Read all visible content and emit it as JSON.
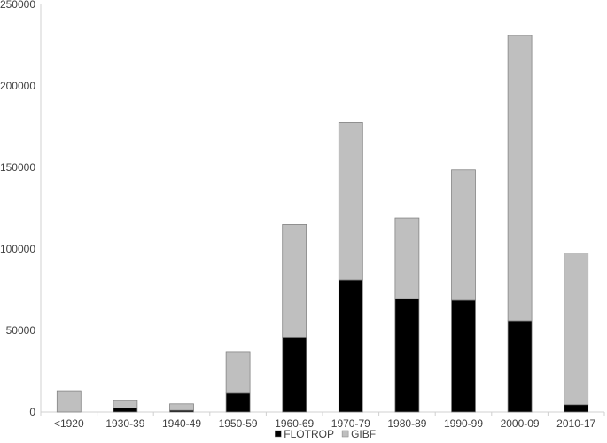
{
  "chart_data": {
    "type": "bar",
    "stacked": true,
    "title": "",
    "xlabel": "",
    "ylabel": "",
    "categories": [
      "<1920",
      "1930-39",
      "1940-49",
      "1950-59",
      "1960-69",
      "1970-79",
      "1980-89",
      "1990-99",
      "2000-09",
      "2010-17"
    ],
    "series": [
      {
        "name": "FLOTROP",
        "color": "#000000",
        "values": [
          0,
          2500,
          1000,
          11500,
          46000,
          81000,
          69500,
          68500,
          56000,
          4500
        ]
      },
      {
        "name": "GIBF",
        "color": "#bfbfbf",
        "values": [
          13000,
          4500,
          4000,
          25500,
          69000,
          96500,
          49500,
          80000,
          175000,
          93000
        ]
      }
    ],
    "ylim": [
      0,
      250000
    ],
    "yticks": [
      "0",
      "50000",
      "100000",
      "150000",
      "200000",
      "250000"
    ],
    "grid": false,
    "legend_position": "bottom"
  }
}
